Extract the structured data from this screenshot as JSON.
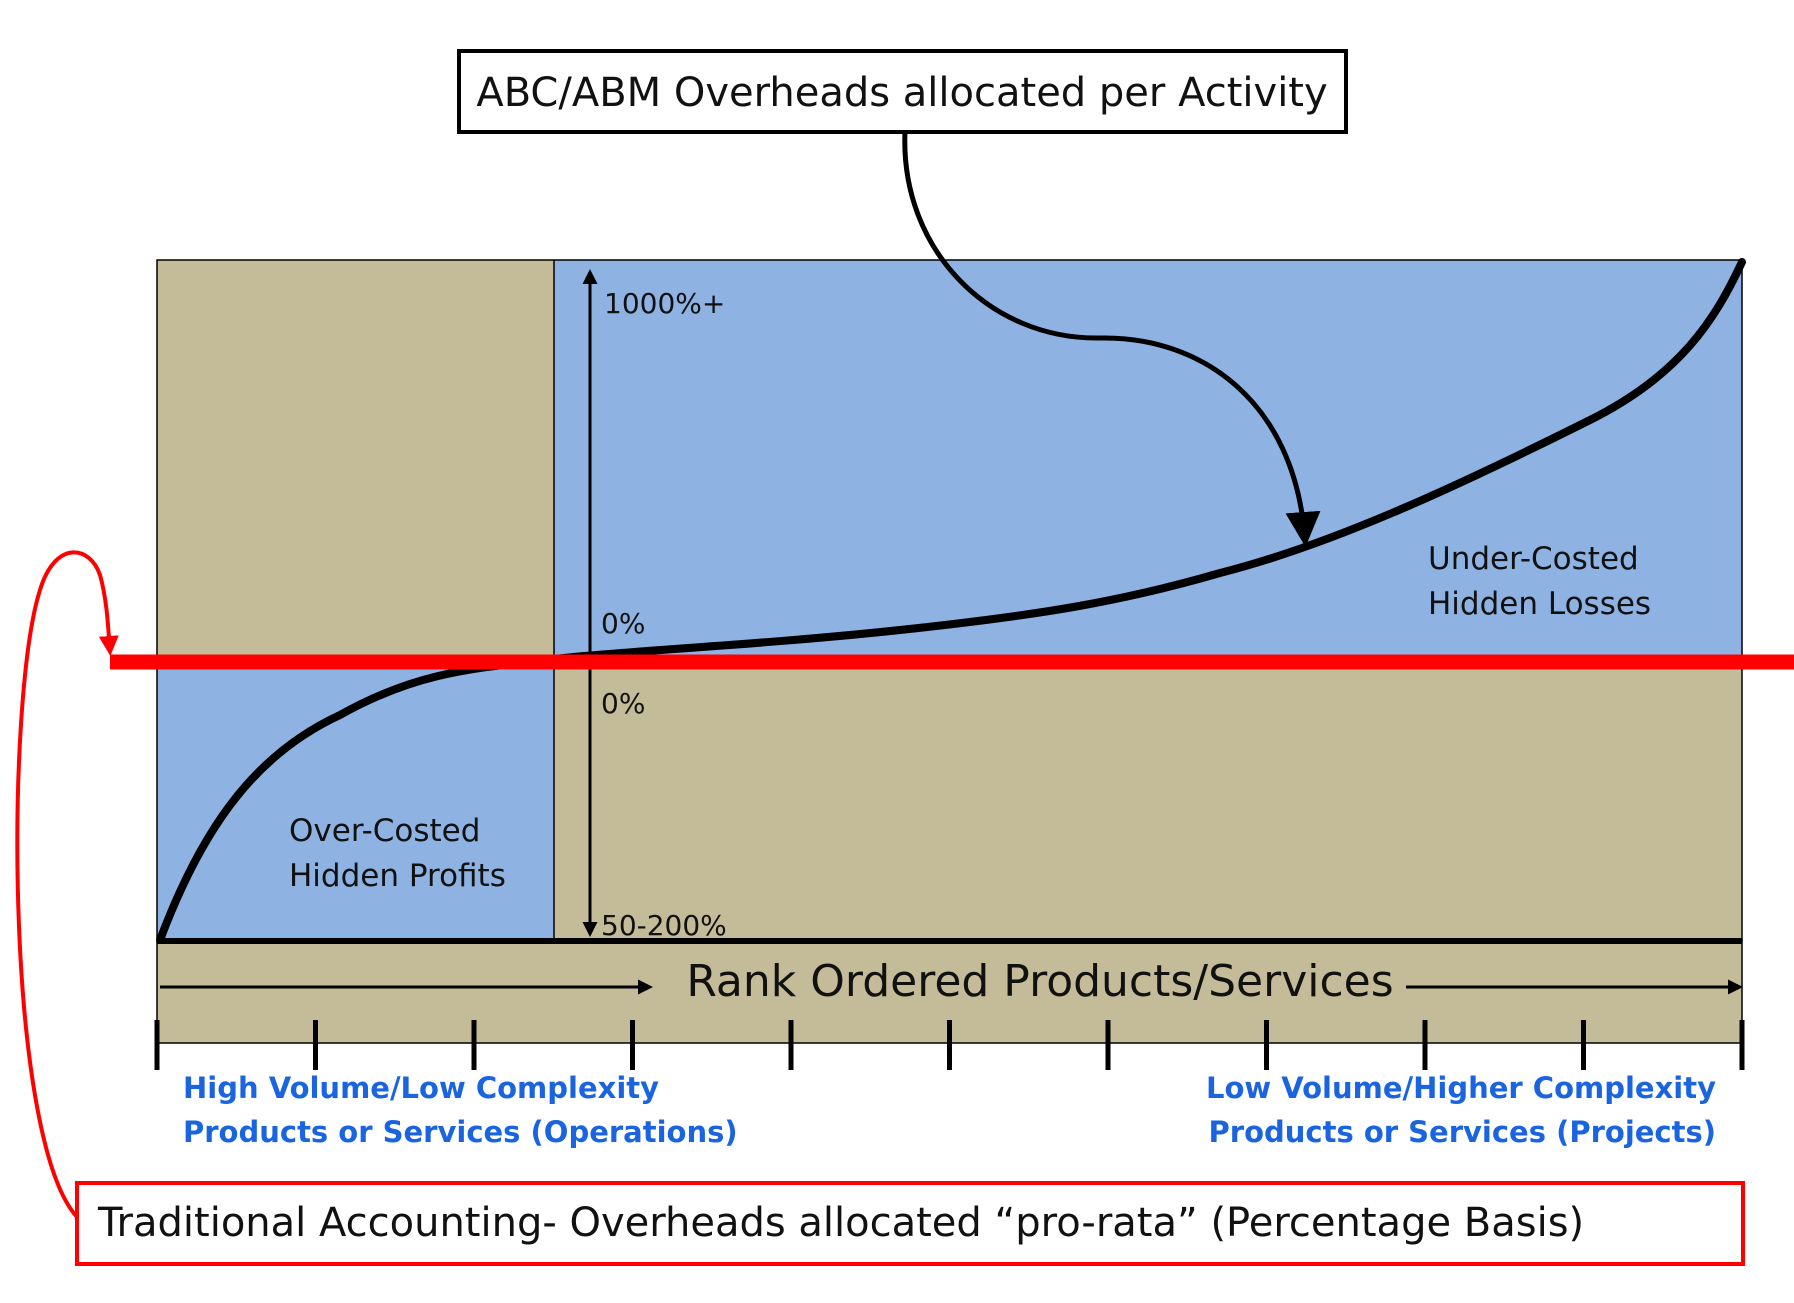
{
  "diagram": {
    "top_callout": "ABC/ABM Overheads allocated per Activity",
    "bottom_callout": "Traditional Accounting- Overheads allocated “pro-rata” (Percentage Basis)",
    "axis_title": "Rank Ordered Products/Services",
    "scale_top": "1000%+",
    "scale_zero_upper": "0%",
    "scale_zero_lower": "0%",
    "scale_bottom": "50-200%",
    "under_costed": {
      "line1": "Under-Costed",
      "line2": "Hidden Losses"
    },
    "over_costed": {
      "line1": "Over-Costed",
      "line2": "Hidden Profits"
    },
    "left_caption": {
      "line1": "High Volume/Low Complexity",
      "line2": "Products or Services (Operations)"
    },
    "right_caption": {
      "line1": "Low Volume/Higher Complexity",
      "line2": "Products or Services (Projects)"
    },
    "tick_count": 11,
    "colors": {
      "tan": "#c4bc98",
      "blue": "#8eb3e3",
      "red": "#ff0000",
      "caption_blue": "#1a64e0",
      "ink": "#000000"
    }
  }
}
